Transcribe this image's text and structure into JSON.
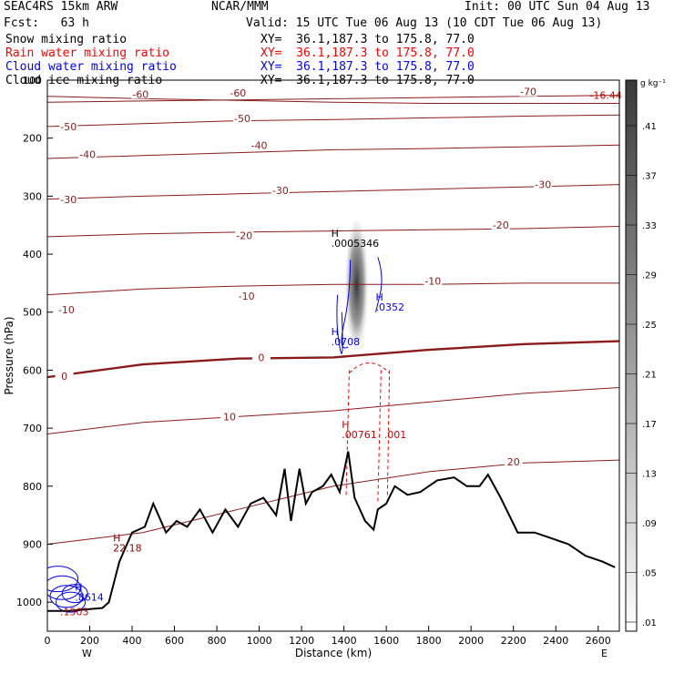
{
  "header": {
    "model": "SEAC4RS 15km ARW",
    "org": "NCAR/MMM",
    "init": "Init: 00 UTC Sun 04 Aug 13",
    "fcst": "Fcst:   63 h",
    "valid": "Valid: 15 UTC Tue 06 Aug 13 (10 CDT Tue 06 Aug 13)",
    "fields": [
      {
        "label": "Snow mixing ratio",
        "xy": "XY=  36.1,187.3 to 175.8, 77.0",
        "color": "#000000"
      },
      {
        "label": "Rain water mixing ratio",
        "xy": "XY=  36.1,187.3 to 175.8, 77.0",
        "color": "#ff0000"
      },
      {
        "label": "Cloud water mixing ratio",
        "xy": "XY=  36.1,187.3 to 175.8, 77.0",
        "color": "#0000ff"
      },
      {
        "label": "Cloud ice mixing ratio",
        "xy": "XY=  36.1,187.3 to 175.8, 77.0",
        "color": "#000000"
      }
    ]
  },
  "chart_data": {
    "type": "cross-section",
    "xlabel": "Distance (km)",
    "ylabel": "Pressure (hPa)",
    "xlim": [
      0,
      2700
    ],
    "ylim": [
      1050,
      100
    ],
    "x_ticks": [
      0,
      200,
      400,
      600,
      800,
      1000,
      1200,
      1400,
      1600,
      1800,
      2000,
      2200,
      2400,
      2600
    ],
    "y_ticks": [
      100,
      200,
      300,
      400,
      500,
      600,
      700,
      800,
      900,
      1000
    ],
    "x_end_labels": {
      "left": "W",
      "right": "E"
    },
    "colorbar": {
      "unit": "g kg⁻¹",
      "ticks": [
        ".41",
        ".37",
        ".33",
        ".29",
        ".25",
        ".21",
        ".17",
        ".13",
        ".09",
        ".05",
        ".01"
      ],
      "values": [
        0.41,
        0.37,
        0.33,
        0.29,
        0.25,
        0.21,
        0.17,
        0.13,
        0.09,
        0.05,
        0.01
      ]
    },
    "temperature_contours": [
      {
        "label": "-70",
        "p": [
          138,
          136,
          134,
          132,
          130,
          128,
          126
        ],
        "bold": false,
        "labels": [
          [
            2270,
            120
          ]
        ]
      },
      {
        "label": "-60",
        "p": [
          128,
          132,
          135,
          138,
          140,
          140,
          140
        ],
        "bold": false,
        "labels": [
          [
            440,
            124
          ],
          [
            900,
            122
          ]
        ]
      },
      {
        "label": "-50",
        "p": [
          180,
          175,
          170,
          168,
          165,
          162,
          160
        ],
        "bold": false,
        "labels": [
          [
            100,
            180
          ],
          [
            920,
            166
          ]
        ]
      },
      {
        "label": "-40",
        "p": [
          235,
          230,
          225,
          220,
          218,
          215,
          212
        ],
        "bold": false,
        "labels": [
          [
            190,
            228
          ],
          [
            1000,
            212
          ]
        ]
      },
      {
        "label": "-30",
        "p": [
          305,
          300,
          296,
          292,
          288,
          284,
          280
        ],
        "bold": false,
        "labels": [
          [
            100,
            306
          ],
          [
            1100,
            290
          ],
          [
            2340,
            280
          ]
        ]
      },
      {
        "label": "-20",
        "p": [
          370,
          365,
          362,
          360,
          358,
          356,
          352
        ],
        "bold": false,
        "labels": [
          [
            930,
            368
          ],
          [
            2140,
            350
          ]
        ]
      },
      {
        "label": "-10",
        "p": [
          470,
          460,
          455,
          452,
          452,
          450,
          450
        ],
        "bold": false,
        "labels": [
          [
            90,
            496
          ],
          [
            940,
            472
          ],
          [
            1820,
            446
          ]
        ]
      },
      {
        "label": "0",
        "p": [
          612,
          590,
          580,
          578,
          565,
          555,
          550
        ],
        "bold": true,
        "labels": [
          [
            80,
            610
          ],
          [
            1010,
            578
          ]
        ]
      },
      {
        "label": "10",
        "p": [
          710,
          690,
          680,
          670,
          655,
          640,
          630
        ],
        "bold": false,
        "labels": [
          [
            860,
            680
          ]
        ]
      },
      {
        "label": "20",
        "p": [
          900,
          880,
          840,
          800,
          775,
          760,
          755
        ],
        "bold": false,
        "labels": [
          [
            2200,
            758
          ]
        ]
      }
    ],
    "annotations": [
      {
        "text": "H",
        "value": ".0005346",
        "x": 1340,
        "p": 370,
        "color": "#000000"
      },
      {
        "text": "H",
        "value": ".0352",
        "x": 1550,
        "p": 480,
        "color": "#0000ff"
      },
      {
        "text": "H",
        "value": ".0708",
        "x": 1340,
        "p": 540,
        "color": "#0000ff"
      },
      {
        "text": "H",
        "value": ".00761",
        "x": 1390,
        "p": 700,
        "color": "#cc0000"
      },
      {
        "text": "",
        "value": ".001",
        "x": 1590,
        "p": 700,
        "color": "#cc0000"
      },
      {
        "text": "H",
        "value": "22.18",
        "x": 310,
        "p": 895,
        "color": "#8b0000"
      },
      {
        "text": "H",
        "value": ".8614",
        "x": 130,
        "p": 980,
        "color": "#0000ff"
      },
      {
        "text": "",
        "value": ".1503",
        "x": 60,
        "p": 1005,
        "color": "#cc0000"
      },
      {
        "text": "",
        "value": "-16.44",
        "x": 2560,
        "p": 115,
        "color": "#cc0000"
      }
    ],
    "terrain": {
      "x": [
        0,
        100,
        200,
        260,
        290,
        340,
        400,
        460,
        500,
        560,
        610,
        660,
        720,
        780,
        840,
        900,
        960,
        1020,
        1080,
        1120,
        1150,
        1190,
        1220,
        1250,
        1300,
        1340,
        1380,
        1420,
        1450,
        1500,
        1540,
        1560,
        1600,
        1640,
        1700,
        1760,
        1840,
        1920,
        1980,
        2040,
        2080,
        2140,
        2220,
        2300,
        2380,
        2460,
        2540,
        2620,
        2680
      ],
      "p": [
        1015,
        1015,
        1012,
        1010,
        1000,
        930,
        880,
        870,
        830,
        880,
        860,
        870,
        840,
        880,
        840,
        870,
        830,
        820,
        850,
        770,
        860,
        770,
        830,
        810,
        800,
        780,
        810,
        740,
        820,
        860,
        875,
        840,
        830,
        800,
        815,
        810,
        790,
        785,
        800,
        800,
        780,
        820,
        880,
        880,
        890,
        900,
        920,
        930,
        940
      ]
    },
    "shading": {
      "x": 1460,
      "p_top": 340,
      "p_bottom": 590,
      "peak_value": 0.41
    }
  }
}
